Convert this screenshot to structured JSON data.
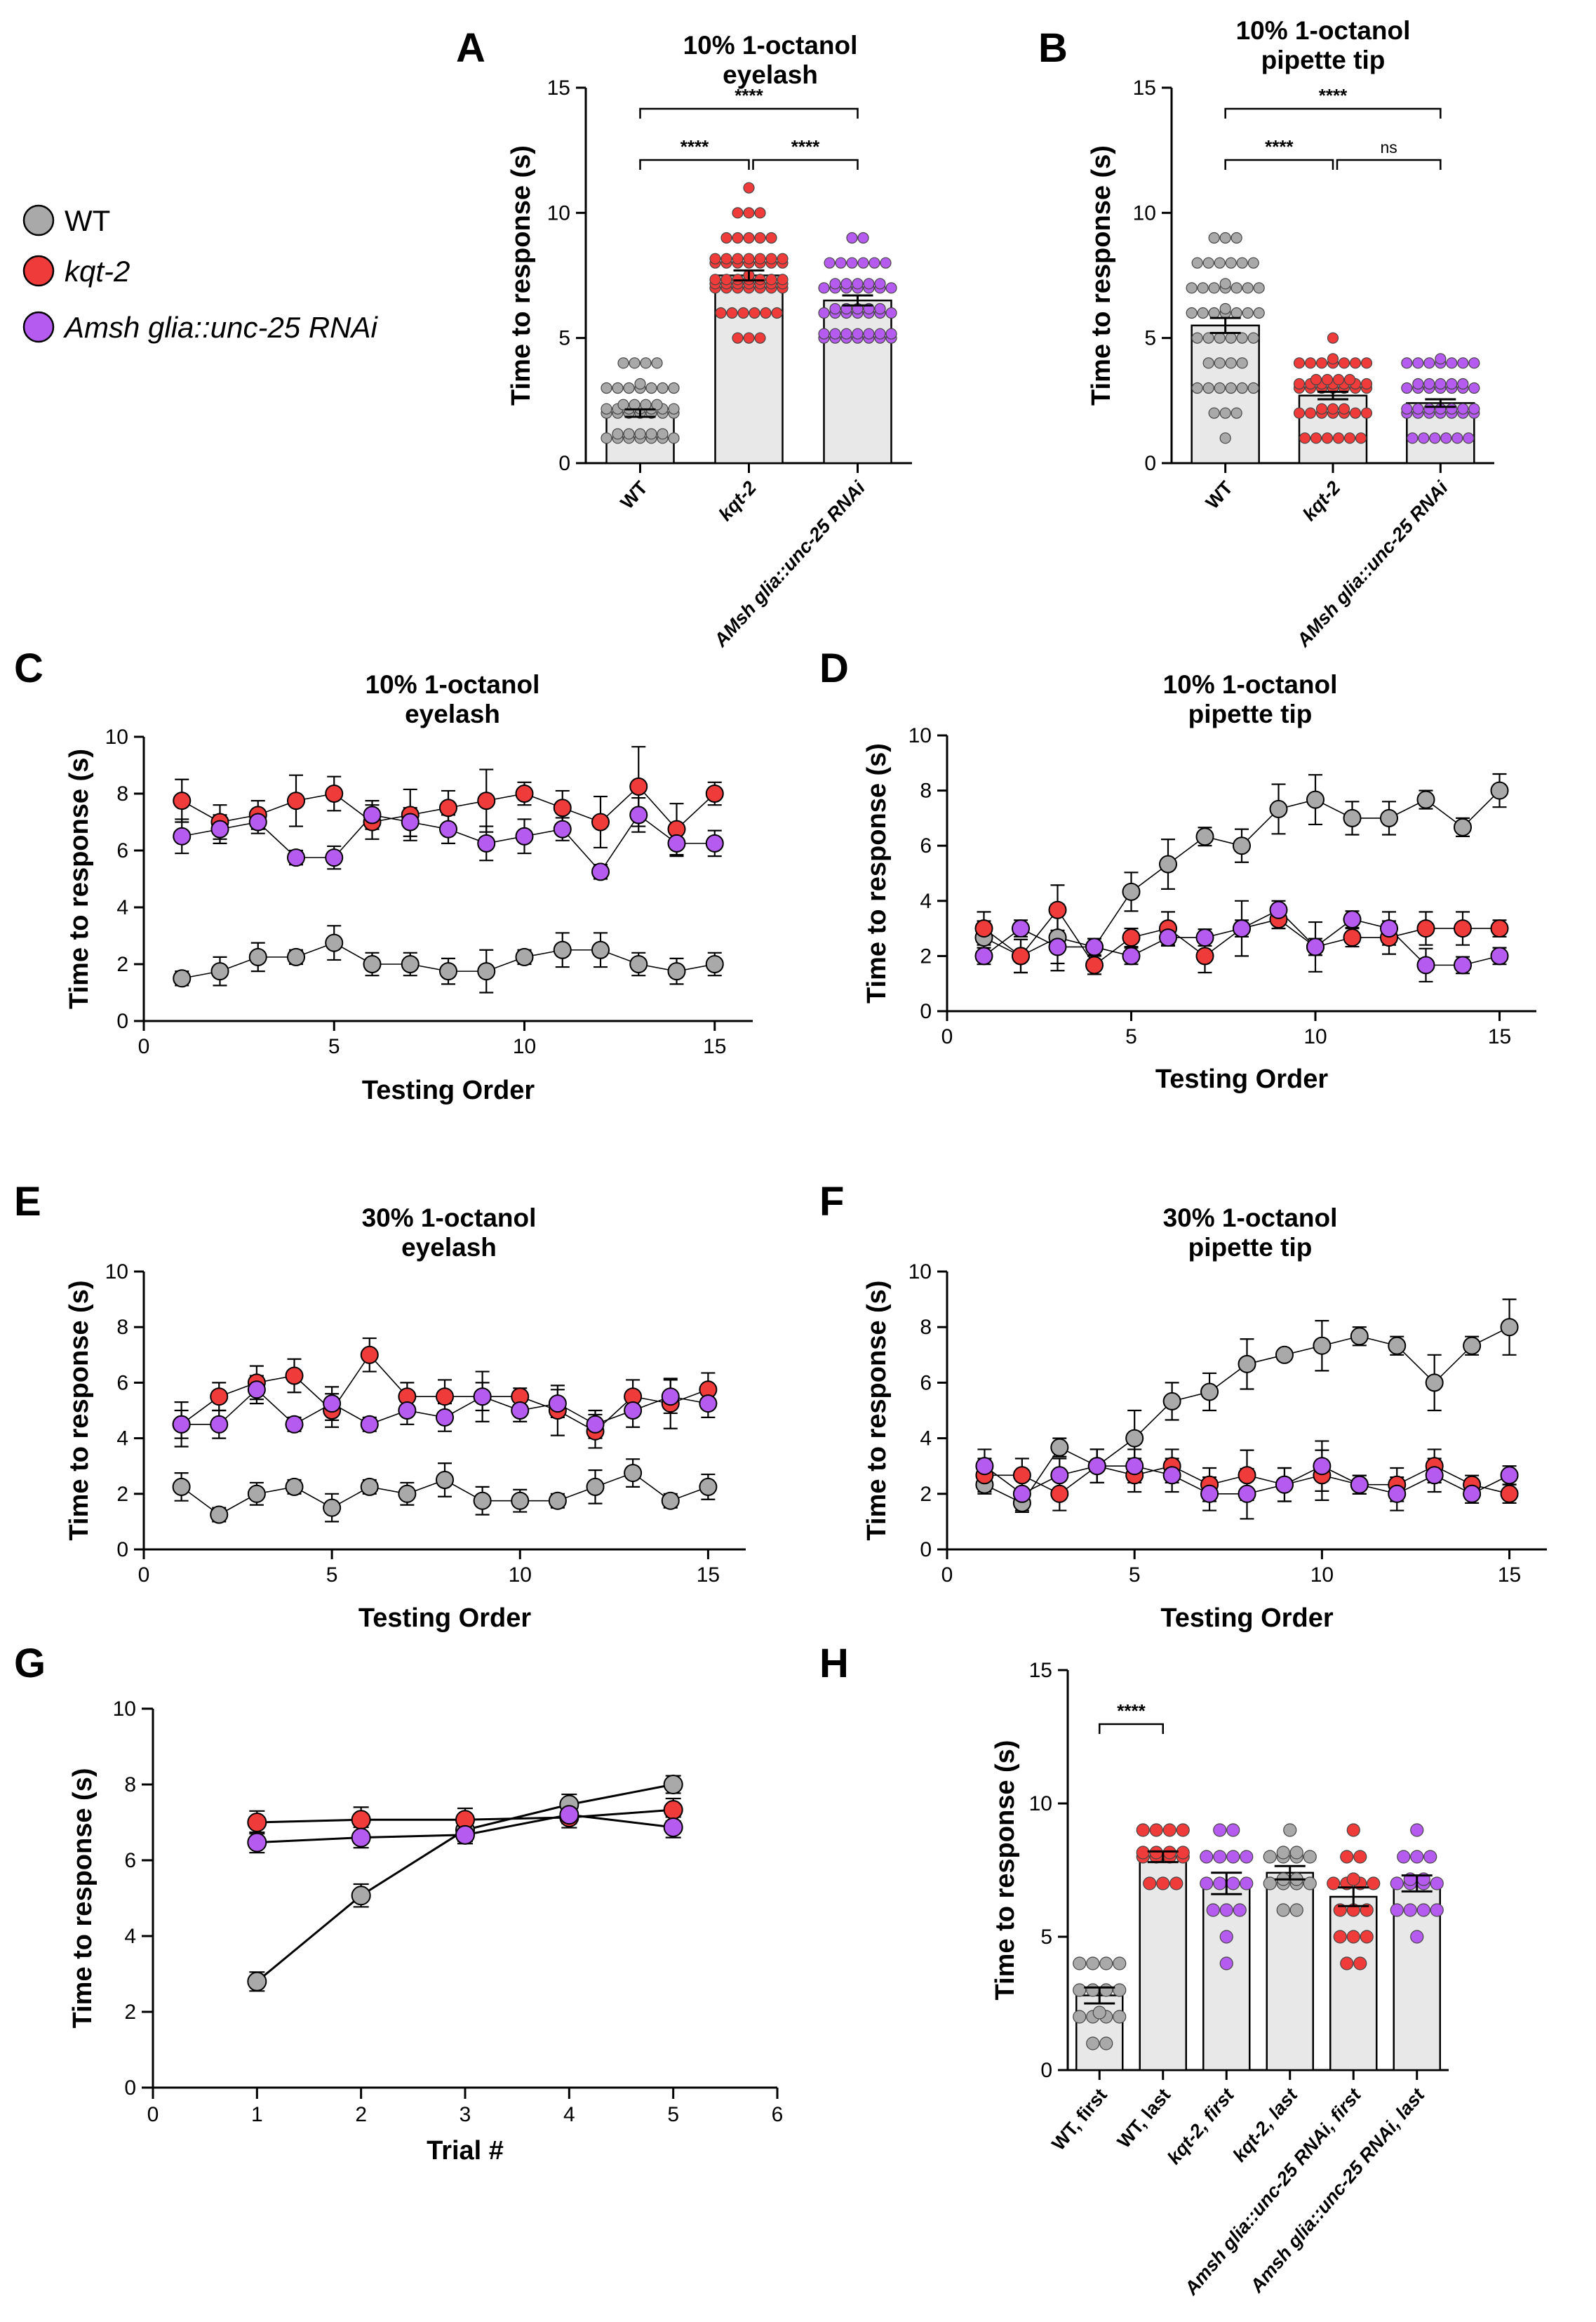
{
  "legend": [
    {
      "label": "WT",
      "color": "#a9a9a9"
    },
    {
      "label": "kqt-2",
      "color": "#ef3b39"
    },
    {
      "label": "Amsh glia::unc-25 RNAi",
      "color": "#b65bf0"
    }
  ],
  "colors": {
    "WT": "#a9a9a9",
    "kqt2": "#ef3b39",
    "rnai": "#b65bf0",
    "bar": "#e8e8e8"
  },
  "chart_data": [
    {
      "id": "A",
      "type": "bar",
      "letter": "A",
      "title": "10% 1-octanol\neyelash",
      "ylabel": "Time to response (s)",
      "ylim": [
        0,
        15
      ],
      "yticks": [
        0,
        5,
        10,
        15
      ],
      "categories": [
        "WT",
        "kqt-2",
        "AMsh glia::unc-25 RNAi"
      ],
      "italic_categories": [
        1,
        2
      ],
      "values": [
        2.0,
        7.5,
        6.5
      ],
      "sem": [
        0.15,
        0.2,
        0.2
      ],
      "point_colors": [
        "WT",
        "kqt2",
        "rnai"
      ],
      "points": [
        [
          [
            1,
            12
          ],
          [
            2,
            18
          ],
          [
            3,
            8
          ],
          [
            4,
            4
          ]
        ],
        [
          [
            5,
            3
          ],
          [
            6,
            6
          ],
          [
            7,
            22
          ],
          [
            8,
            14
          ],
          [
            9,
            5
          ],
          [
            10,
            3
          ],
          [
            11,
            1
          ]
        ],
        [
          [
            5,
            14
          ],
          [
            6,
            12
          ],
          [
            7,
            12
          ],
          [
            8,
            6
          ],
          [
            9,
            2
          ]
        ]
      ],
      "comparisons": [
        {
          "from": 0,
          "to": 1,
          "label": "****",
          "level": 0
        },
        {
          "from": 1,
          "to": 2,
          "label": "****",
          "level": 0
        },
        {
          "from": 0,
          "to": 2,
          "label": "****",
          "level": 1
        }
      ]
    },
    {
      "id": "B",
      "type": "bar",
      "letter": "B",
      "title": "10% 1-octanol\npipette tip",
      "ylabel": "Time to response (s)",
      "ylim": [
        0,
        15
      ],
      "yticks": [
        0,
        5,
        10,
        15
      ],
      "categories": [
        "WT",
        "kqt-2",
        "AMsh glia::unc-25 RNAi"
      ],
      "italic_categories": [
        1,
        2
      ],
      "values": [
        5.5,
        2.7,
        2.4
      ],
      "sem": [
        0.3,
        0.15,
        0.15
      ],
      "point_colors": [
        "WT",
        "kqt2",
        "rnai"
      ],
      "points": [
        [
          [
            1,
            1
          ],
          [
            2,
            3
          ],
          [
            3,
            6
          ],
          [
            4,
            4
          ],
          [
            5,
            6
          ],
          [
            6,
            8
          ],
          [
            7,
            8
          ],
          [
            8,
            6
          ],
          [
            9,
            3
          ]
        ],
        [
          [
            1,
            6
          ],
          [
            2,
            10
          ],
          [
            3,
            18
          ],
          [
            4,
            8
          ],
          [
            5,
            1
          ]
        ],
        [
          [
            1,
            6
          ],
          [
            2,
            14
          ],
          [
            3,
            12
          ],
          [
            4,
            8
          ]
        ]
      ],
      "comparisons": [
        {
          "from": 0,
          "to": 1,
          "label": "****",
          "level": 0
        },
        {
          "from": 1,
          "to": 2,
          "label": "ns",
          "level": 0
        },
        {
          "from": 0,
          "to": 2,
          "label": "****",
          "level": 1
        }
      ]
    },
    {
      "id": "C",
      "type": "line",
      "letter": "C",
      "title": "10% 1-octanol\neyelash",
      "xlabel": "Testing Order",
      "ylabel": "Time to response (s)",
      "xlim": [
        0,
        16
      ],
      "xticks": [
        0,
        5,
        10,
        15
      ],
      "ylim": [
        0,
        10
      ],
      "yticks": [
        0,
        2,
        4,
        6,
        8,
        10
      ],
      "x": [
        1,
        2,
        3,
        4,
        5,
        6,
        7,
        8,
        9,
        10,
        11,
        12,
        13,
        14,
        15
      ],
      "series": [
        {
          "key": "WT",
          "values": [
            1.5,
            1.75,
            2.25,
            2.25,
            2.75,
            2.0,
            2.0,
            1.75,
            1.75,
            2.25,
            2.5,
            2.5,
            2.0,
            1.75,
            2.0
          ],
          "err": [
            0.25,
            0.5,
            0.5,
            0.25,
            0.6,
            0.4,
            0.4,
            0.45,
            0.75,
            0.25,
            0.6,
            0.6,
            0.4,
            0.45,
            0.4
          ]
        },
        {
          "key": "kqt2",
          "values": [
            7.75,
            7.0,
            7.25,
            7.75,
            8.0,
            7.0,
            7.25,
            7.5,
            7.75,
            8.0,
            7.5,
            7.0,
            8.25,
            6.75,
            8.0
          ],
          "err": [
            0.75,
            0.6,
            0.5,
            0.9,
            0.6,
            0.6,
            0.9,
            0.6,
            1.1,
            0.4,
            0.6,
            0.9,
            1.4,
            0.9,
            0.4
          ]
        },
        {
          "key": "rnai",
          "values": [
            6.5,
            6.75,
            7.0,
            5.75,
            5.75,
            7.25,
            7.0,
            6.75,
            6.25,
            6.5,
            6.75,
            5.25,
            7.25,
            6.25,
            6.25
          ],
          "err": [
            0.6,
            0.5,
            0.4,
            0.25,
            0.4,
            0.5,
            0.5,
            0.5,
            0.6,
            0.6,
            0.4,
            0.25,
            0.6,
            0.45,
            0.45
          ]
        }
      ]
    },
    {
      "id": "D",
      "type": "line",
      "letter": "D",
      "title": "10% 1-octanol\npipette tip",
      "xlabel": "Testing Order",
      "ylabel": "Time to response (s)",
      "xlim": [
        0,
        16
      ],
      "xticks": [
        0,
        5,
        10,
        15
      ],
      "ylim": [
        0,
        10
      ],
      "yticks": [
        0,
        2,
        4,
        6,
        8,
        10
      ],
      "x": [
        1,
        2,
        3,
        4,
        5,
        6,
        7,
        8,
        9,
        10,
        11,
        12,
        13,
        14,
        15
      ],
      "series": [
        {
          "key": "WT",
          "values": [
            2.67,
            2.0,
            2.67,
            2.33,
            4.33,
            5.33,
            6.33,
            6.0,
            7.33,
            7.67,
            7.0,
            7.0,
            7.67,
            6.67,
            8.0
          ],
          "err": [
            0.6,
            0.6,
            1.2,
            0.3,
            0.7,
            0.9,
            0.33,
            0.6,
            0.9,
            0.9,
            0.6,
            0.6,
            0.33,
            0.33,
            0.6
          ]
        },
        {
          "key": "kqt2",
          "values": [
            3.0,
            2.0,
            3.67,
            1.67,
            2.67,
            3.0,
            2.0,
            3.0,
            3.33,
            2.33,
            2.67,
            2.67,
            3.0,
            3.0,
            3.0
          ],
          "err": [
            0.6,
            0.6,
            0.9,
            0.33,
            0.33,
            0.6,
            0.6,
            1.0,
            0.33,
            0.9,
            0.33,
            0.6,
            0.6,
            0.6,
            0.3
          ]
        },
        {
          "key": "rnai",
          "values": [
            2.0,
            3.0,
            2.33,
            2.33,
            2.0,
            2.67,
            2.67,
            3.0,
            3.67,
            2.33,
            3.33,
            3.0,
            1.67,
            1.67,
            2.0
          ],
          "err": [
            0.3,
            0.3,
            0.6,
            0.3,
            0.3,
            0.3,
            0.3,
            0.3,
            0.33,
            0.3,
            0.3,
            0.6,
            0.6,
            0.3,
            0.3
          ]
        }
      ]
    },
    {
      "id": "E",
      "type": "line",
      "letter": "E",
      "title": "30% 1-octanol\neyelash",
      "xlabel": "Testing Order",
      "ylabel": "Time to response (s)",
      "xlim": [
        0,
        16
      ],
      "xticks": [
        0,
        5,
        10,
        15
      ],
      "ylim": [
        0,
        10
      ],
      "yticks": [
        0,
        2,
        4,
        6,
        8,
        10
      ],
      "x": [
        1,
        2,
        3,
        4,
        5,
        6,
        7,
        8,
        9,
        10,
        11,
        12,
        13,
        14,
        15
      ],
      "series": [
        {
          "key": "WT",
          "values": [
            2.25,
            1.25,
            2.0,
            2.25,
            1.5,
            2.25,
            2.0,
            2.5,
            1.75,
            1.75,
            1.75,
            2.25,
            2.75,
            1.75,
            2.25
          ],
          "err": [
            0.5,
            0.25,
            0.4,
            0.25,
            0.5,
            0.25,
            0.4,
            0.6,
            0.5,
            0.4,
            0.25,
            0.6,
            0.5,
            0.25,
            0.45
          ]
        },
        {
          "key": "kqt2",
          "values": [
            4.5,
            5.5,
            6.0,
            6.25,
            5.0,
            7.0,
            5.5,
            5.5,
            5.5,
            5.5,
            5.0,
            4.25,
            5.5,
            5.25,
            5.75
          ],
          "err": [
            0.8,
            0.5,
            0.6,
            0.6,
            0.6,
            0.6,
            0.5,
            0.6,
            0.9,
            0.3,
            0.9,
            0.6,
            0.6,
            0.9,
            0.6
          ]
        },
        {
          "key": "rnai",
          "values": [
            4.5,
            4.5,
            5.75,
            4.5,
            5.25,
            4.5,
            5.0,
            4.75,
            5.5,
            5.0,
            5.25,
            4.5,
            5.0,
            5.5,
            5.25
          ],
          "err": [
            0.5,
            0.5,
            0.5,
            0.25,
            0.6,
            0.25,
            0.5,
            0.5,
            0.5,
            0.4,
            0.5,
            0.5,
            0.6,
            0.6,
            0.5
          ]
        }
      ]
    },
    {
      "id": "F",
      "type": "line",
      "letter": "F",
      "title": "30% 1-octanol\npipette tip",
      "xlabel": "Testing Order",
      "ylabel": "Time to response (s)",
      "xlim": [
        0,
        16
      ],
      "xticks": [
        0,
        5,
        10,
        15
      ],
      "ylim": [
        0,
        10
      ],
      "yticks": [
        0,
        2,
        4,
        6,
        8,
        10
      ],
      "x": [
        1,
        2,
        3,
        4,
        5,
        6,
        7,
        8,
        9,
        10,
        11,
        12,
        13,
        14,
        15
      ],
      "series": [
        {
          "key": "WT",
          "values": [
            2.33,
            1.67,
            3.67,
            3.0,
            4.0,
            5.33,
            5.67,
            6.67,
            7.0,
            7.33,
            7.67,
            7.33,
            6.0,
            7.33,
            8.0
          ],
          "err": [
            0.33,
            0.33,
            0.33,
            0.6,
            1.0,
            0.67,
            0.67,
            0.9,
            0.0,
            0.9,
            0.33,
            0.33,
            1.0,
            0.33,
            1.0
          ]
        },
        {
          "key": "kqt2",
          "values": [
            2.67,
            2.67,
            2.0,
            3.0,
            2.67,
            3.0,
            2.33,
            2.67,
            2.33,
            2.67,
            2.33,
            2.33,
            3.0,
            2.33,
            2.0
          ]
        },
        {
          "key": "rnai",
          "values": [
            3.0,
            2.0,
            2.67,
            3.0,
            3.0,
            2.67,
            2.0,
            2.0,
            2.33,
            3.0,
            2.33,
            2.0,
            2.67,
            2.0,
            2.67
          ]
        }
      ],
      "shared_err": [
        0.6,
        0.6,
        0.6,
        0.6,
        0.6,
        0.6,
        0.6,
        0.9,
        0.6,
        0.9,
        0.33,
        0.6,
        0.6,
        0.33,
        0.33
      ]
    },
    {
      "id": "G",
      "type": "line",
      "letter": "G",
      "xlabel": "Trial #",
      "ylabel": "Time to response (s)",
      "xlim": [
        0,
        6
      ],
      "xticks": [
        0,
        1,
        2,
        3,
        4,
        5,
        6
      ],
      "ylim": [
        0,
        10
      ],
      "yticks": [
        0,
        2,
        4,
        6,
        8,
        10
      ],
      "x": [
        1,
        2,
        3,
        4,
        5
      ],
      "series": [
        {
          "key": "WT",
          "values": [
            2.8,
            5.07,
            6.8,
            7.47,
            8.0
          ],
          "err": [
            0.25,
            0.3,
            0.3,
            0.27,
            0.23
          ]
        },
        {
          "key": "kqt2",
          "values": [
            7.0,
            7.07,
            7.07,
            7.13,
            7.33
          ],
          "err": [
            0.3,
            0.33,
            0.3,
            0.27,
            0.3
          ]
        },
        {
          "key": "rnai",
          "values": [
            6.47,
            6.6,
            6.67,
            7.2,
            6.87
          ],
          "err": [
            0.27,
            0.27,
            0.23,
            0.23,
            0.27
          ]
        }
      ]
    },
    {
      "id": "H",
      "type": "bar",
      "letter": "H",
      "ylabel": "Time to response (s)",
      "ylim": [
        0,
        15
      ],
      "yticks": [
        0,
        5,
        10,
        15
      ],
      "categories": [
        "WT, first",
        "WT, last",
        "kqt-2, first",
        "kqt-2, last",
        "Amsh glia::unc-25 RNAi, first",
        "Amsh glia::unc-25 RNAi, last"
      ],
      "italic_categories": [
        2,
        3,
        4,
        5
      ],
      "values": [
        2.8,
        8.0,
        7.0,
        7.4,
        6.5,
        7.0
      ],
      "sem": [
        0.3,
        0.2,
        0.4,
        0.25,
        0.35,
        0.3
      ],
      "point_colors": [
        "WT",
        "kqt2",
        "rnai",
        "WT",
        "kqt2",
        "rnai"
      ],
      "points": [
        [
          [
            1,
            2
          ],
          [
            2,
            5
          ],
          [
            3,
            4
          ],
          [
            4,
            4
          ]
        ],
        [
          [
            7,
            3
          ],
          [
            8,
            8
          ],
          [
            9,
            4
          ]
        ],
        [
          [
            4,
            1
          ],
          [
            5,
            1
          ],
          [
            6,
            3
          ],
          [
            7,
            4
          ],
          [
            8,
            4
          ],
          [
            9,
            2
          ]
        ],
        [
          [
            6,
            2
          ],
          [
            7,
            6
          ],
          [
            8,
            6
          ],
          [
            9,
            1
          ]
        ],
        [
          [
            4,
            2
          ],
          [
            5,
            3
          ],
          [
            6,
            3
          ],
          [
            7,
            5
          ],
          [
            8,
            2
          ],
          [
            9,
            1
          ]
        ],
        [
          [
            5,
            1
          ],
          [
            6,
            4
          ],
          [
            7,
            6
          ],
          [
            8,
            3
          ],
          [
            9,
            1
          ]
        ]
      ],
      "comparisons": [
        {
          "from": 0,
          "to": 1,
          "label": "****",
          "level": 0
        }
      ]
    }
  ]
}
